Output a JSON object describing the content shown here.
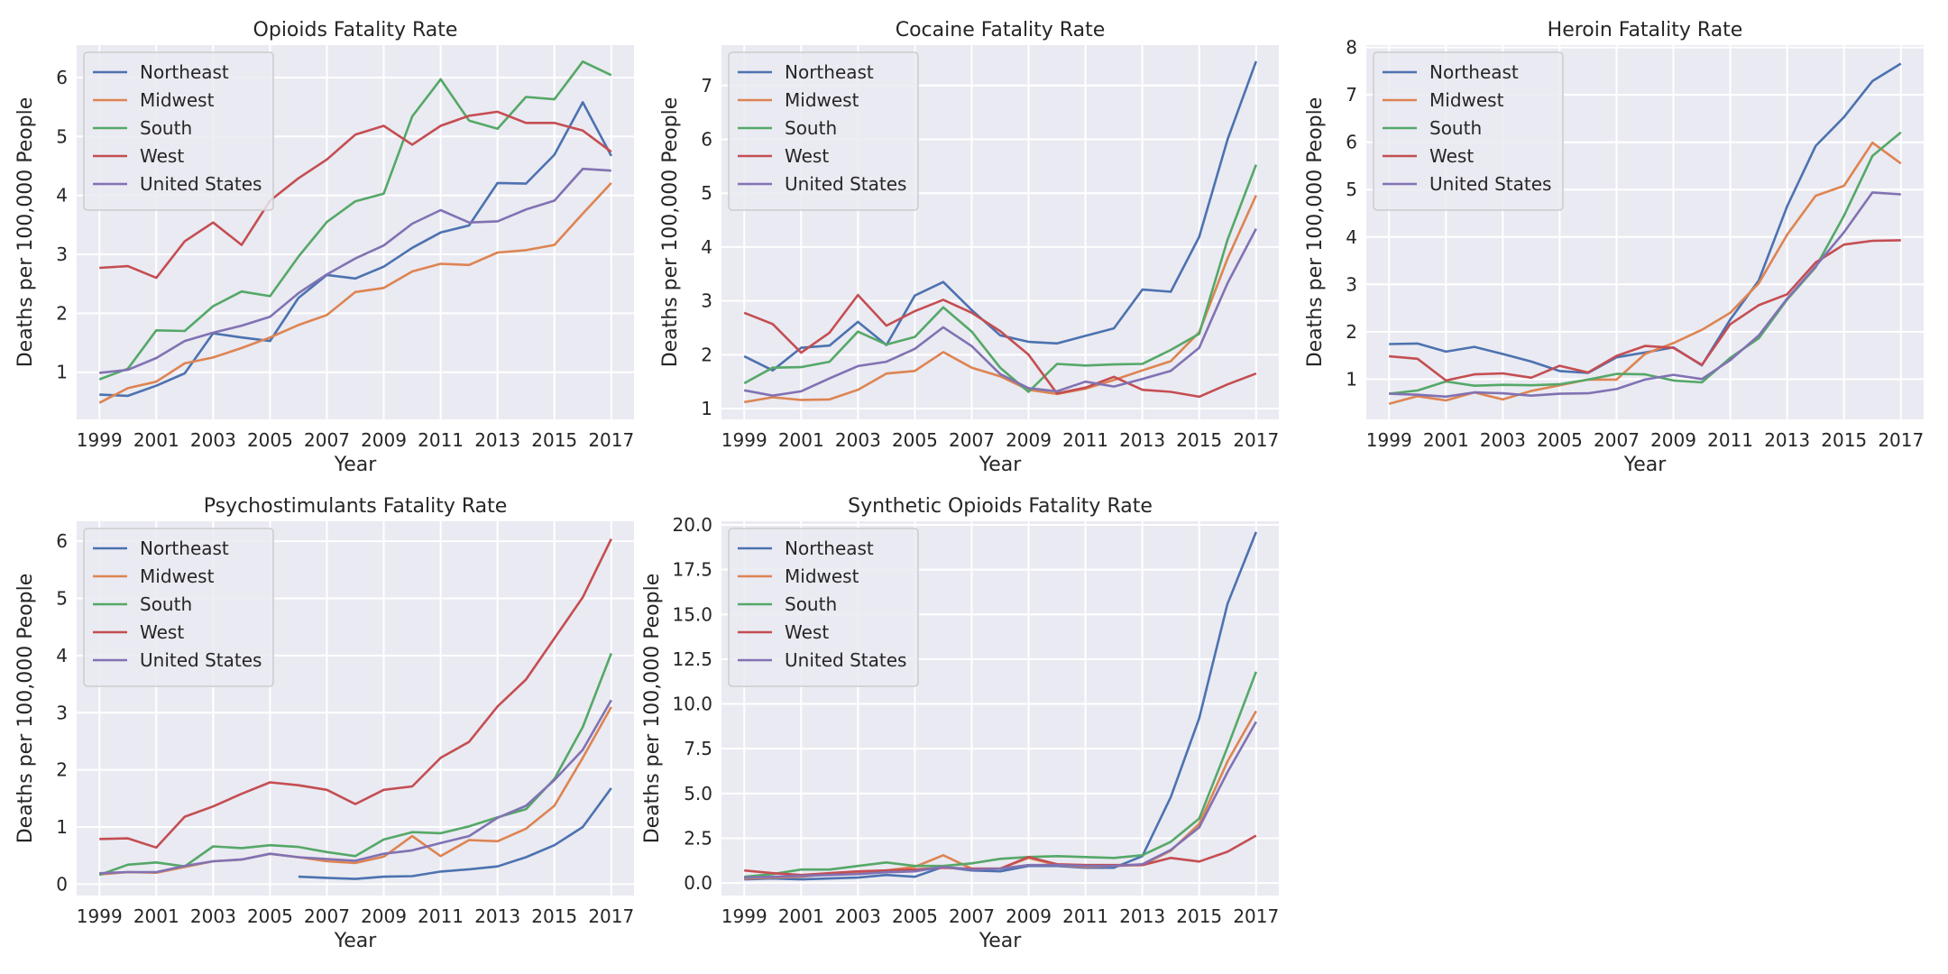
{
  "colors": {
    "Northeast": "#4c72b0",
    "Midwest": "#dd8452",
    "South": "#55a868",
    "West": "#c44e52",
    "United States": "#8172b3",
    "axes_background": "#eaeaf2",
    "grid": "#ffffff",
    "text": "#262626"
  },
  "chart_data": [
    {
      "type": "line",
      "title": "Opioids Fatality Rate",
      "xlabel": "Year",
      "ylabel": "Deaths per 100,000 People",
      "xlim": [
        1998.2,
        2017.8
      ],
      "ylim": [
        0.2,
        6.55
      ],
      "x_ticks": [
        1999,
        2001,
        2003,
        2005,
        2007,
        2009,
        2011,
        2013,
        2015,
        2017
      ],
      "y_ticks": [
        1,
        2,
        3,
        4,
        5,
        6
      ],
      "grid": true,
      "legend_position": "upper-left",
      "x": [
        1999,
        2000,
        2001,
        2002,
        2003,
        2004,
        2005,
        2006,
        2007,
        2008,
        2009,
        2010,
        2011,
        2012,
        2013,
        2014,
        2015,
        2016,
        2017
      ],
      "series": [
        {
          "name": "Northeast",
          "values": [
            0.62,
            0.6,
            0.77,
            0.98,
            1.66,
            1.59,
            1.53,
            2.26,
            2.65,
            2.59,
            2.79,
            3.11,
            3.37,
            3.49,
            4.21,
            4.2,
            4.69,
            5.58,
            4.67
          ]
        },
        {
          "name": "Midwest",
          "values": [
            0.48,
            0.73,
            0.84,
            1.15,
            1.25,
            1.41,
            1.59,
            1.8,
            1.97,
            2.36,
            2.43,
            2.71,
            2.84,
            2.82,
            3.03,
            3.07,
            3.16,
            3.69,
            4.21
          ]
        },
        {
          "name": "South",
          "values": [
            0.88,
            1.06,
            1.71,
            1.7,
            2.12,
            2.37,
            2.29,
            2.96,
            3.55,
            3.9,
            4.03,
            5.34,
            5.97,
            5.27,
            5.13,
            5.67,
            5.63,
            6.27,
            6.04
          ]
        },
        {
          "name": "West",
          "values": [
            2.77,
            2.8,
            2.6,
            3.22,
            3.54,
            3.16,
            3.91,
            4.29,
            4.61,
            5.03,
            5.18,
            4.86,
            5.18,
            5.35,
            5.42,
            5.23,
            5.23,
            5.1,
            4.74
          ]
        },
        {
          "name": "United States",
          "values": [
            0.99,
            1.04,
            1.24,
            1.53,
            1.67,
            1.79,
            1.94,
            2.34,
            2.66,
            2.93,
            3.15,
            3.52,
            3.75,
            3.54,
            3.56,
            3.76,
            3.91,
            4.45,
            4.42
          ]
        }
      ]
    },
    {
      "type": "line",
      "title": "Cocaine Fatality Rate",
      "xlabel": "Year",
      "ylabel": "Deaths per 100,000 People",
      "xlim": [
        1998.2,
        2017.8
      ],
      "ylim": [
        0.8,
        7.75
      ],
      "x_ticks": [
        1999,
        2001,
        2003,
        2005,
        2007,
        2009,
        2011,
        2013,
        2015,
        2017
      ],
      "y_ticks": [
        1,
        2,
        3,
        4,
        5,
        6,
        7
      ],
      "grid": true,
      "legend_position": "upper-left",
      "x": [
        1999,
        2000,
        2001,
        2002,
        2003,
        2004,
        2005,
        2006,
        2007,
        2008,
        2009,
        2010,
        2011,
        2012,
        2013,
        2014,
        2015,
        2016,
        2017
      ],
      "series": [
        {
          "name": "Northeast",
          "values": [
            1.97,
            1.71,
            2.13,
            2.17,
            2.61,
            2.18,
            3.1,
            3.35,
            2.83,
            2.36,
            2.24,
            2.21,
            2.35,
            2.49,
            3.21,
            3.17,
            4.19,
            6.0,
            7.45
          ]
        },
        {
          "name": "Midwest",
          "values": [
            1.12,
            1.21,
            1.16,
            1.17,
            1.35,
            1.65,
            1.7,
            2.05,
            1.76,
            1.6,
            1.35,
            1.27,
            1.37,
            1.53,
            1.71,
            1.88,
            2.42,
            3.79,
            4.96
          ]
        },
        {
          "name": "South",
          "values": [
            1.47,
            1.76,
            1.77,
            1.87,
            2.43,
            2.19,
            2.33,
            2.88,
            2.43,
            1.76,
            1.31,
            1.83,
            1.8,
            1.82,
            1.83,
            2.09,
            2.39,
            4.14,
            5.53
          ]
        },
        {
          "name": "West",
          "values": [
            2.78,
            2.57,
            2.04,
            2.41,
            3.11,
            2.54,
            2.81,
            3.02,
            2.78,
            2.44,
            2.0,
            1.28,
            1.39,
            1.59,
            1.35,
            1.31,
            1.22,
            1.45,
            1.65
          ]
        },
        {
          "name": "United States",
          "values": [
            1.34,
            1.24,
            1.32,
            1.56,
            1.79,
            1.87,
            2.11,
            2.51,
            2.16,
            1.64,
            1.38,
            1.32,
            1.5,
            1.41,
            1.55,
            1.7,
            2.13,
            3.33,
            4.34
          ]
        }
      ]
    },
    {
      "type": "line",
      "title": "Heroin Fatality Rate",
      "xlabel": "Year",
      "ylabel": "Deaths per 100,000 People",
      "xlim": [
        1998.2,
        2017.8
      ],
      "ylim": [
        0.15,
        8.05
      ],
      "x_ticks": [
        1999,
        2001,
        2003,
        2005,
        2007,
        2009,
        2011,
        2013,
        2015,
        2017
      ],
      "y_ticks": [
        1,
        2,
        3,
        4,
        5,
        6,
        7,
        8
      ],
      "grid": true,
      "legend_position": "upper-left",
      "x": [
        1999,
        2000,
        2001,
        2002,
        2003,
        2004,
        2005,
        2006,
        2007,
        2008,
        2009,
        2010,
        2011,
        2012,
        2013,
        2014,
        2015,
        2016,
        2017
      ],
      "series": [
        {
          "name": "Northeast",
          "values": [
            1.74,
            1.75,
            1.58,
            1.68,
            1.53,
            1.37,
            1.17,
            1.13,
            1.46,
            1.56,
            1.67,
            1.29,
            2.26,
            3.08,
            4.65,
            5.92,
            6.53,
            7.29,
            7.66
          ]
        },
        {
          "name": "Midwest",
          "values": [
            0.48,
            0.64,
            0.55,
            0.72,
            0.57,
            0.75,
            0.87,
            0.99,
            0.99,
            1.53,
            1.76,
            2.04,
            2.4,
            3.02,
            4.05,
            4.87,
            5.08,
            5.99,
            5.55
          ]
        },
        {
          "name": "South",
          "values": [
            0.69,
            0.76,
            0.95,
            0.86,
            0.88,
            0.87,
            0.89,
            0.99,
            1.11,
            1.1,
            0.97,
            0.93,
            1.45,
            1.86,
            2.68,
            3.36,
            4.45,
            5.71,
            6.21
          ]
        },
        {
          "name": "West",
          "values": [
            1.48,
            1.43,
            0.97,
            1.1,
            1.12,
            1.03,
            1.28,
            1.14,
            1.49,
            1.7,
            1.66,
            1.3,
            2.16,
            2.56,
            2.79,
            3.46,
            3.84,
            3.92,
            3.93
          ]
        },
        {
          "name": "United States",
          "values": [
            0.69,
            0.67,
            0.63,
            0.72,
            0.7,
            0.65,
            0.69,
            0.7,
            0.79,
            0.99,
            1.09,
            1.0,
            1.4,
            1.92,
            2.7,
            3.38,
            4.1,
            4.94,
            4.9
          ]
        }
      ]
    },
    {
      "type": "line",
      "title": "Psychostimulants Fatality Rate",
      "xlabel": "Year",
      "ylabel": "Deaths per 100,000 People",
      "xlim": [
        1998.2,
        2017.8
      ],
      "ylim": [
        -0.2,
        6.35
      ],
      "x_ticks": [
        1999,
        2001,
        2003,
        2005,
        2007,
        2009,
        2011,
        2013,
        2015,
        2017
      ],
      "y_ticks": [
        0,
        1,
        2,
        3,
        4,
        5,
        6
      ],
      "grid": true,
      "legend_position": "upper-left",
      "x": [
        1999,
        2000,
        2001,
        2002,
        2003,
        2004,
        2005,
        2006,
        2007,
        2008,
        2009,
        2010,
        2011,
        2012,
        2013,
        2014,
        2015,
        2016,
        2017
      ],
      "series": [
        {
          "name": "Northeast",
          "values": [
            null,
            null,
            null,
            null,
            null,
            null,
            null,
            0.13,
            0.11,
            0.09,
            0.13,
            0.14,
            0.22,
            0.26,
            0.31,
            0.47,
            0.68,
            1.0,
            1.68
          ]
        },
        {
          "name": "Midwest",
          "values": [
            0.17,
            0.21,
            0.2,
            0.3,
            0.4,
            0.43,
            0.53,
            0.47,
            0.4,
            0.37,
            0.48,
            0.84,
            0.49,
            0.77,
            0.75,
            0.97,
            1.37,
            2.21,
            3.1
          ]
        },
        {
          "name": "South",
          "values": [
            0.16,
            0.34,
            0.38,
            0.31,
            0.66,
            0.63,
            0.68,
            0.65,
            0.56,
            0.49,
            0.78,
            0.91,
            0.89,
            1.01,
            1.17,
            1.31,
            1.84,
            2.75,
            4.04
          ]
        },
        {
          "name": "West",
          "values": [
            0.79,
            0.8,
            0.64,
            1.18,
            1.36,
            1.58,
            1.78,
            1.73,
            1.65,
            1.4,
            1.65,
            1.71,
            2.21,
            2.49,
            3.11,
            3.58,
            4.3,
            5.02,
            6.04
          ]
        },
        {
          "name": "United States",
          "values": [
            0.19,
            0.21,
            0.21,
            0.32,
            0.4,
            0.43,
            0.53,
            0.47,
            0.44,
            0.41,
            0.53,
            0.59,
            0.72,
            0.84,
            1.16,
            1.37,
            1.82,
            2.35,
            3.22
          ]
        }
      ]
    },
    {
      "type": "line",
      "title": "Synthetic Opioids Fatality Rate",
      "xlabel": "Year",
      "ylabel": "Deaths per 100,000 People",
      "xlim": [
        1998.2,
        2017.8
      ],
      "ylim": [
        -0.7,
        20.2
      ],
      "x_ticks": [
        1999,
        2001,
        2003,
        2005,
        2007,
        2009,
        2011,
        2013,
        2015,
        2017
      ],
      "y_ticks": [
        0,
        2.5,
        5,
        7.5,
        10,
        12.5,
        15,
        17.5,
        20
      ],
      "y_tick_labels": [
        "0.0",
        "2.5",
        "5.0",
        "7.5",
        "10.0",
        "12.5",
        "15.0",
        "17.5",
        "20.0"
      ],
      "grid": true,
      "legend_position": "upper-left",
      "x": [
        1999,
        2000,
        2001,
        2002,
        2003,
        2004,
        2005,
        2006,
        2007,
        2008,
        2009,
        2010,
        2011,
        2012,
        2013,
        2014,
        2015,
        2016,
        2017
      ],
      "series": [
        {
          "name": "Northeast",
          "values": [
            0.2,
            0.25,
            0.2,
            0.25,
            0.3,
            0.45,
            0.35,
            0.9,
            0.7,
            0.65,
            0.95,
            0.95,
            0.85,
            0.85,
            1.5,
            4.8,
            9.2,
            15.6,
            19.6
          ]
        },
        {
          "name": "Midwest",
          "values": [
            0.25,
            0.3,
            0.35,
            0.5,
            0.6,
            0.7,
            0.9,
            1.55,
            0.8,
            0.8,
            1.4,
            1.0,
            0.9,
            0.95,
            1.0,
            1.8,
            3.3,
            6.8,
            9.6
          ]
        },
        {
          "name": "South",
          "values": [
            0.35,
            0.5,
            0.75,
            0.75,
            0.95,
            1.15,
            0.95,
            0.95,
            1.1,
            1.35,
            1.45,
            1.5,
            1.45,
            1.4,
            1.55,
            2.3,
            3.6,
            7.6,
            11.8
          ]
        },
        {
          "name": "West",
          "values": [
            0.7,
            0.55,
            0.45,
            0.55,
            0.65,
            0.7,
            0.75,
            0.85,
            0.8,
            0.8,
            1.45,
            1.05,
            1.0,
            1.0,
            1.0,
            1.4,
            1.2,
            1.75,
            2.65
          ]
        },
        {
          "name": "United States",
          "values": [
            0.3,
            0.35,
            0.4,
            0.45,
            0.5,
            0.6,
            0.65,
            0.9,
            0.75,
            0.8,
            1.0,
            1.0,
            0.95,
            0.95,
            1.05,
            1.85,
            3.1,
            6.2,
            9.0
          ]
        }
      ]
    }
  ]
}
